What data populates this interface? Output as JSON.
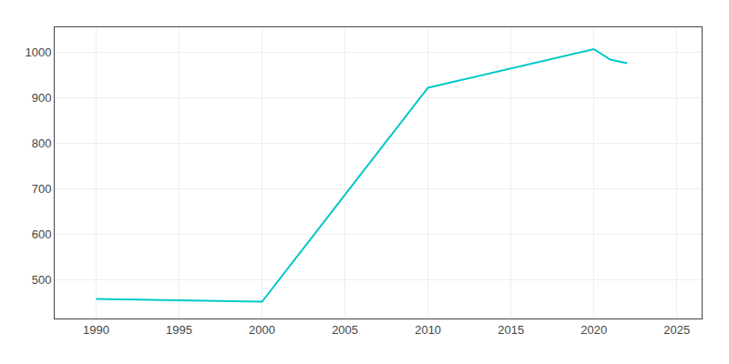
{
  "chart_data": {
    "type": "line",
    "x": [
      1990,
      2000,
      2010,
      2020,
      2021,
      2022
    ],
    "values": [
      458,
      452,
      922,
      1007,
      984,
      976
    ],
    "color": "#00C8C8",
    "xlim": [
      1987.5,
      2026.5
    ],
    "ylim": [
      415,
      1055
    ],
    "xticks": [
      1990,
      1995,
      2000,
      2005,
      2010,
      2015,
      2020,
      2025
    ],
    "yticks": [
      500,
      600,
      700,
      800,
      900,
      1000
    ],
    "grid": true
  }
}
